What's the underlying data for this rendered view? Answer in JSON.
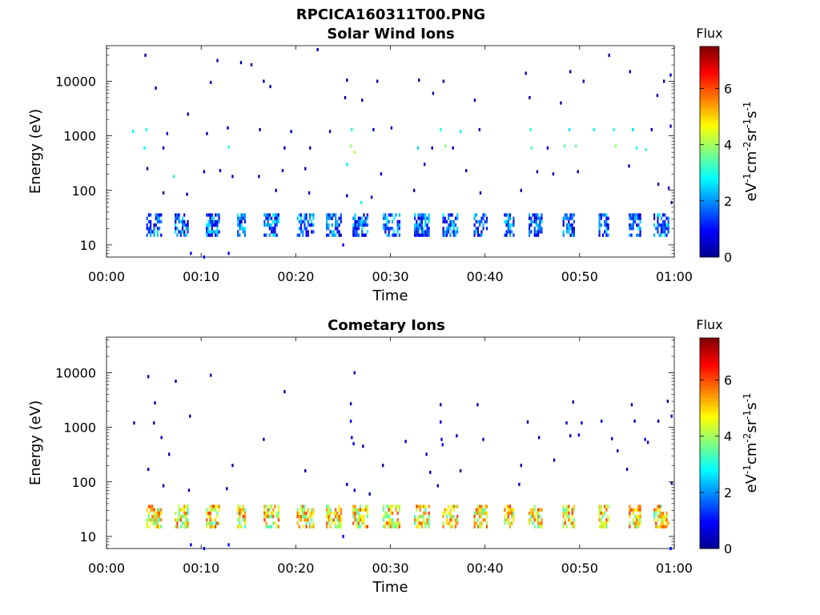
{
  "figure": {
    "title": "RPCICA160311T00.PNG",
    "palette": [
      "#00008f",
      "#0000ff",
      "#007fff",
      "#00ffff",
      "#7fff7f",
      "#ffff00",
      "#ff7f00",
      "#ff0000",
      "#7f0000"
    ]
  },
  "chart_data": [
    {
      "type": "heatmap",
      "title": "Solar Wind Ions",
      "xlabel": "Time",
      "ylabel": "Energy (eV)",
      "x_ticks": [
        "00:00",
        "00:10",
        "00:20",
        "00:30",
        "00:40",
        "00:50",
        "01:00"
      ],
      "y_ticks": [
        "10",
        "100",
        "1000",
        "10000"
      ],
      "y_scale": "log",
      "y_range_eV": [
        6,
        45000
      ],
      "x_range_min": [
        0,
        60
      ],
      "colorbar": {
        "title": "Flux",
        "label": "eV-1cm-2sr-1s-1",
        "ticks": [
          "0",
          "2",
          "4",
          "6"
        ],
        "range": [
          0,
          7.5
        ]
      },
      "ion_band": {
        "energy_eV": [
          15,
          38
        ],
        "flux": [
          0.4,
          2.8
        ],
        "bursts_min": [
          [
            4.2,
            5.8
          ],
          [
            7.2,
            8.6
          ],
          [
            10.5,
            11.9
          ],
          [
            13.8,
            14.7
          ],
          [
            16.6,
            18.2
          ],
          [
            20.1,
            21.8
          ],
          [
            23.2,
            24.8
          ],
          [
            26.0,
            27.6
          ],
          [
            29.2,
            30.9
          ],
          [
            32.5,
            34.0
          ],
          [
            35.5,
            37.0
          ],
          [
            38.8,
            40.2
          ],
          [
            42.0,
            43.0
          ],
          [
            44.6,
            46.0
          ],
          [
            48.2,
            49.5
          ],
          [
            52.0,
            53.0
          ],
          [
            55.2,
            56.5
          ],
          [
            57.8,
            59.3
          ]
        ]
      },
      "scatter_points": [
        {
          "t": 4.1,
          "e": 30000,
          "f": 0.3
        },
        {
          "t": 11.7,
          "e": 24000,
          "f": 0.3
        },
        {
          "t": 14.2,
          "e": 22000,
          "f": 0.3
        },
        {
          "t": 15.3,
          "e": 20000,
          "f": 0.3
        },
        {
          "t": 22.3,
          "e": 38000,
          "f": 0.3
        },
        {
          "t": 5.2,
          "e": 7500,
          "f": 0.3
        },
        {
          "t": 11.0,
          "e": 9500,
          "f": 0.3
        },
        {
          "t": 16.6,
          "e": 10000,
          "f": 0.3
        },
        {
          "t": 17.3,
          "e": 8000,
          "f": 0.4
        },
        {
          "t": 25.4,
          "e": 10500,
          "f": 0.3
        },
        {
          "t": 28.6,
          "e": 10000,
          "f": 0.3
        },
        {
          "t": 33.0,
          "e": 10500,
          "f": 0.3
        },
        {
          "t": 35.6,
          "e": 10000,
          "f": 0.3
        },
        {
          "t": 44.3,
          "e": 14000,
          "f": 0.3
        },
        {
          "t": 49.0,
          "e": 15000,
          "f": 0.3
        },
        {
          "t": 50.4,
          "e": 10000,
          "f": 0.3
        },
        {
          "t": 53.1,
          "e": 30000,
          "f": 0.3
        },
        {
          "t": 55.3,
          "e": 15000,
          "f": 0.3
        },
        {
          "t": 58.9,
          "e": 10000,
          "f": 0.3
        },
        {
          "t": 59.6,
          "e": 13000,
          "f": 0.3
        },
        {
          "t": 2.8,
          "e": 1200,
          "f": 2.7
        },
        {
          "t": 4.2,
          "e": 1300,
          "f": 3.0
        },
        {
          "t": 6.4,
          "e": 1100,
          "f": 0.4
        },
        {
          "t": 8.6,
          "e": 2500,
          "f": 0.3
        },
        {
          "t": 10.6,
          "e": 1100,
          "f": 0.4
        },
        {
          "t": 12.8,
          "e": 1400,
          "f": 0.3
        },
        {
          "t": 16.2,
          "e": 1300,
          "f": 0.3
        },
        {
          "t": 19.5,
          "e": 1200,
          "f": 0.3
        },
        {
          "t": 23.6,
          "e": 1200,
          "f": 0.3
        },
        {
          "t": 25.9,
          "e": 1300,
          "f": 3.0
        },
        {
          "t": 28.2,
          "e": 1300,
          "f": 0.4
        },
        {
          "t": 30.1,
          "e": 1400,
          "f": 0.3
        },
        {
          "t": 35.3,
          "e": 1300,
          "f": 3.0
        },
        {
          "t": 37.4,
          "e": 1200,
          "f": 2.7
        },
        {
          "t": 39.4,
          "e": 1300,
          "f": 0.4
        },
        {
          "t": 44.8,
          "e": 1300,
          "f": 3.0
        },
        {
          "t": 48.9,
          "e": 1300,
          "f": 2.7
        },
        {
          "t": 51.5,
          "e": 1300,
          "f": 2.9
        },
        {
          "t": 53.6,
          "e": 1300,
          "f": 3.0
        },
        {
          "t": 55.6,
          "e": 1300,
          "f": 2.6
        },
        {
          "t": 57.6,
          "e": 1300,
          "f": 0.4
        },
        {
          "t": 59.6,
          "e": 1500,
          "f": 0.3
        },
        {
          "t": 4.0,
          "e": 600,
          "f": 2.8
        },
        {
          "t": 6.0,
          "e": 600,
          "f": 0.4
        },
        {
          "t": 12.9,
          "e": 620,
          "f": 3.0
        },
        {
          "t": 18.8,
          "e": 600,
          "f": 0.3
        },
        {
          "t": 21.5,
          "e": 600,
          "f": 0.3
        },
        {
          "t": 25.8,
          "e": 650,
          "f": 3.9
        },
        {
          "t": 26.2,
          "e": 500,
          "f": 4.1
        },
        {
          "t": 32.9,
          "e": 600,
          "f": 2.5
        },
        {
          "t": 34.4,
          "e": 600,
          "f": 0.4
        },
        {
          "t": 35.8,
          "e": 650,
          "f": 3.8
        },
        {
          "t": 36.6,
          "e": 600,
          "f": 0.4
        },
        {
          "t": 44.9,
          "e": 600,
          "f": 3.4
        },
        {
          "t": 46.6,
          "e": 600,
          "f": 0.4
        },
        {
          "t": 48.4,
          "e": 650,
          "f": 3.5
        },
        {
          "t": 49.6,
          "e": 650,
          "f": 3.6
        },
        {
          "t": 53.8,
          "e": 650,
          "f": 3.8
        },
        {
          "t": 56.0,
          "e": 600,
          "f": 2.9
        },
        {
          "t": 57.0,
          "e": 560,
          "f": 3.2
        },
        {
          "t": 4.3,
          "e": 250,
          "f": 0.3
        },
        {
          "t": 7.1,
          "e": 180,
          "f": 3.0
        },
        {
          "t": 10.3,
          "e": 220,
          "f": 0.4
        },
        {
          "t": 12.0,
          "e": 230,
          "f": 0.4
        },
        {
          "t": 13.3,
          "e": 180,
          "f": 0.3
        },
        {
          "t": 16.1,
          "e": 180,
          "f": 0.3
        },
        {
          "t": 18.6,
          "e": 230,
          "f": 0.3
        },
        {
          "t": 21.0,
          "e": 250,
          "f": 0.4
        },
        {
          "t": 25.4,
          "e": 300,
          "f": 2.7
        },
        {
          "t": 29.0,
          "e": 200,
          "f": 0.4
        },
        {
          "t": 33.6,
          "e": 300,
          "f": 0.4
        },
        {
          "t": 38.0,
          "e": 230,
          "f": 0.3
        },
        {
          "t": 45.5,
          "e": 220,
          "f": 0.3
        },
        {
          "t": 47.2,
          "e": 200,
          "f": 0.3
        },
        {
          "t": 49.8,
          "e": 220,
          "f": 0.4
        },
        {
          "t": 55.2,
          "e": 280,
          "f": 0.3
        },
        {
          "t": 58.3,
          "e": 130,
          "f": 0.4
        },
        {
          "t": 59.4,
          "e": 110,
          "f": 0.3
        },
        {
          "t": 6.0,
          "e": 90,
          "f": 0.3
        },
        {
          "t": 8.5,
          "e": 85,
          "f": 0.3
        },
        {
          "t": 17.9,
          "e": 100,
          "f": 0.4
        },
        {
          "t": 21.4,
          "e": 90,
          "f": 0.3
        },
        {
          "t": 25.4,
          "e": 80,
          "f": 0.3
        },
        {
          "t": 26.9,
          "e": 60,
          "f": 2.8
        },
        {
          "t": 28.0,
          "e": 75,
          "f": 0.4
        },
        {
          "t": 32.5,
          "e": 100,
          "f": 0.3
        },
        {
          "t": 39.5,
          "e": 90,
          "f": 0.3
        },
        {
          "t": 43.8,
          "e": 100,
          "f": 0.3
        },
        {
          "t": 59.7,
          "e": 60,
          "f": 0.4
        },
        {
          "t": 25.2,
          "e": 5000,
          "f": 0.3
        },
        {
          "t": 27.0,
          "e": 4500,
          "f": 0.3
        },
        {
          "t": 34.5,
          "e": 6000,
          "f": 0.3
        },
        {
          "t": 38.9,
          "e": 4500,
          "f": 0.3
        },
        {
          "t": 44.7,
          "e": 5000,
          "f": 0.3
        },
        {
          "t": 48.0,
          "e": 4000,
          "f": 0.3
        },
        {
          "t": 58.2,
          "e": 5500,
          "f": 0.3
        },
        {
          "t": 8.9,
          "e": 7,
          "f": 0.9
        },
        {
          "t": 10.3,
          "e": 6,
          "f": 0.9
        },
        {
          "t": 12.9,
          "e": 7,
          "f": 0.9
        },
        {
          "t": 25.0,
          "e": 10,
          "f": 0.9
        }
      ]
    },
    {
      "type": "heatmap",
      "title": "Cometary Ions",
      "xlabel": "Time",
      "ylabel": "Energy (eV)",
      "x_ticks": [
        "00:00",
        "00:10",
        "00:20",
        "00:30",
        "00:40",
        "00:50",
        "01:00"
      ],
      "y_ticks": [
        "10",
        "100",
        "1000",
        "10000"
      ],
      "y_scale": "log",
      "y_range_eV": [
        6,
        45000
      ],
      "x_range_min": [
        0,
        60
      ],
      "colorbar": {
        "title": "Flux",
        "label": "eV-1cm-2sr-1s-1",
        "ticks": [
          "0",
          "2",
          "4",
          "6"
        ],
        "range": [
          0,
          7.5
        ]
      },
      "ion_band": {
        "energy_eV": [
          15,
          38
        ],
        "flux": [
          3.2,
          6.2
        ],
        "bursts_min": [
          [
            4.2,
            5.8
          ],
          [
            7.2,
            8.6
          ],
          [
            10.5,
            11.9
          ],
          [
            13.8,
            14.7
          ],
          [
            16.6,
            18.2
          ],
          [
            20.1,
            21.8
          ],
          [
            23.2,
            24.8
          ],
          [
            26.0,
            27.6
          ],
          [
            29.2,
            30.9
          ],
          [
            32.5,
            34.0
          ],
          [
            35.5,
            37.0
          ],
          [
            38.8,
            40.2
          ],
          [
            42.0,
            43.0
          ],
          [
            44.6,
            46.0
          ],
          [
            48.2,
            49.5
          ],
          [
            52.0,
            53.0
          ],
          [
            55.2,
            56.5
          ],
          [
            57.8,
            59.3
          ]
        ]
      },
      "scatter_points": [
        {
          "t": 4.4,
          "e": 8500,
          "f": 0.3
        },
        {
          "t": 7.3,
          "e": 7000,
          "f": 0.3
        },
        {
          "t": 11.0,
          "e": 9000,
          "f": 0.3
        },
        {
          "t": 26.2,
          "e": 10000,
          "f": 0.3
        },
        {
          "t": 18.8,
          "e": 4500,
          "f": 0.3
        },
        {
          "t": 5.1,
          "e": 2800,
          "f": 0.3
        },
        {
          "t": 25.8,
          "e": 2700,
          "f": 0.3
        },
        {
          "t": 35.3,
          "e": 2600,
          "f": 0.3
        },
        {
          "t": 39.2,
          "e": 2600,
          "f": 0.3
        },
        {
          "t": 49.3,
          "e": 2900,
          "f": 0.3
        },
        {
          "t": 55.5,
          "e": 2600,
          "f": 0.3
        },
        {
          "t": 59.3,
          "e": 3000,
          "f": 0.3
        },
        {
          "t": 2.9,
          "e": 1200,
          "f": 0.3
        },
        {
          "t": 5.0,
          "e": 1200,
          "f": 0.3
        },
        {
          "t": 8.8,
          "e": 1600,
          "f": 0.3
        },
        {
          "t": 25.8,
          "e": 1300,
          "f": 0.9
        },
        {
          "t": 35.3,
          "e": 1250,
          "f": 0.9
        },
        {
          "t": 44.5,
          "e": 1250,
          "f": 0.3
        },
        {
          "t": 48.6,
          "e": 1200,
          "f": 0.6
        },
        {
          "t": 50.2,
          "e": 1200,
          "f": 0.6
        },
        {
          "t": 52.3,
          "e": 1300,
          "f": 0.6
        },
        {
          "t": 55.8,
          "e": 1300,
          "f": 0.6
        },
        {
          "t": 58.3,
          "e": 1300,
          "f": 0.3
        },
        {
          "t": 59.7,
          "e": 1600,
          "f": 0.3
        },
        {
          "t": 5.8,
          "e": 650,
          "f": 0.3
        },
        {
          "t": 16.6,
          "e": 600,
          "f": 0.3
        },
        {
          "t": 25.9,
          "e": 650,
          "f": 0.9
        },
        {
          "t": 26.1,
          "e": 500,
          "f": 0.9
        },
        {
          "t": 27.1,
          "e": 450,
          "f": 0.3
        },
        {
          "t": 31.6,
          "e": 550,
          "f": 0.3
        },
        {
          "t": 35.4,
          "e": 600,
          "f": 0.9
        },
        {
          "t": 35.5,
          "e": 480,
          "f": 0.9
        },
        {
          "t": 37.0,
          "e": 700,
          "f": 0.3
        },
        {
          "t": 39.8,
          "e": 600,
          "f": 0.3
        },
        {
          "t": 45.7,
          "e": 650,
          "f": 0.3
        },
        {
          "t": 49.0,
          "e": 700,
          "f": 0.6
        },
        {
          "t": 49.9,
          "e": 720,
          "f": 0.9
        },
        {
          "t": 53.4,
          "e": 620,
          "f": 0.9
        },
        {
          "t": 56.9,
          "e": 600,
          "f": 0.9
        },
        {
          "t": 57.2,
          "e": 530,
          "f": 0.9
        },
        {
          "t": 6.6,
          "e": 320,
          "f": 0.3
        },
        {
          "t": 33.8,
          "e": 320,
          "f": 0.3
        },
        {
          "t": 47.3,
          "e": 250,
          "f": 0.3
        },
        {
          "t": 54.0,
          "e": 370,
          "f": 0.3
        },
        {
          "t": 4.4,
          "e": 170,
          "f": 0.3
        },
        {
          "t": 13.3,
          "e": 200,
          "f": 0.3
        },
        {
          "t": 21.0,
          "e": 160,
          "f": 0.3
        },
        {
          "t": 29.2,
          "e": 200,
          "f": 0.3
        },
        {
          "t": 34.2,
          "e": 150,
          "f": 0.3
        },
        {
          "t": 37.4,
          "e": 160,
          "f": 0.3
        },
        {
          "t": 43.8,
          "e": 200,
          "f": 0.3
        },
        {
          "t": 55.0,
          "e": 170,
          "f": 0.3
        },
        {
          "t": 6.0,
          "e": 85,
          "f": 0.3
        },
        {
          "t": 8.7,
          "e": 70,
          "f": 0.3
        },
        {
          "t": 12.7,
          "e": 75,
          "f": 0.3
        },
        {
          "t": 25.4,
          "e": 90,
          "f": 0.3
        },
        {
          "t": 26.2,
          "e": 70,
          "f": 0.4
        },
        {
          "t": 27.8,
          "e": 60,
          "f": 0.3
        },
        {
          "t": 35.0,
          "e": 85,
          "f": 0.3
        },
        {
          "t": 43.6,
          "e": 90,
          "f": 0.3
        },
        {
          "t": 59.7,
          "e": 95,
          "f": 0.3
        },
        {
          "t": 8.9,
          "e": 7,
          "f": 0.9
        },
        {
          "t": 10.3,
          "e": 6,
          "f": 0.9
        },
        {
          "t": 12.9,
          "e": 7,
          "f": 0.9
        },
        {
          "t": 25.0,
          "e": 10,
          "f": 0.9
        },
        {
          "t": 59.6,
          "e": 6,
          "f": 0.9
        }
      ]
    }
  ]
}
